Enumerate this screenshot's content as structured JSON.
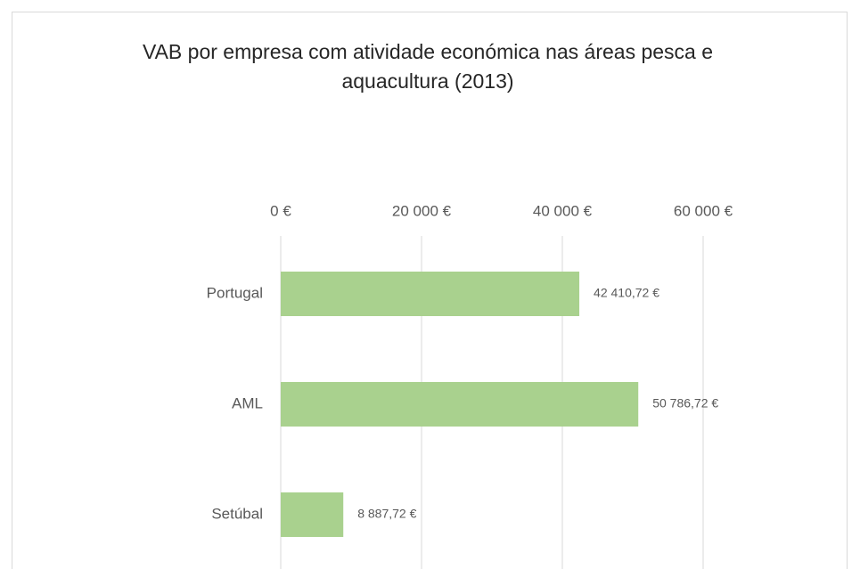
{
  "chart_data": {
    "type": "barh",
    "title": "VAB por empresa com atividade económica nas áreas pesca e aquacultura (2013)",
    "categories": [
      "Portugal",
      "AML",
      "Setúbal"
    ],
    "values": [
      42410.72,
      50786.72,
      8887.72
    ],
    "value_labels": [
      "42 410,72 €",
      "50 786,72 €",
      "8 887,72 €"
    ],
    "color": "#a9d18e",
    "xlim": [
      0,
      60000
    ],
    "xticks": [
      {
        "value": 0,
        "label": "0 €"
      },
      {
        "value": 20000,
        "label": "20 000 €"
      },
      {
        "value": 40000,
        "label": "40 000 €"
      },
      {
        "value": 60000,
        "label": "60 000 €"
      }
    ],
    "grid": true
  }
}
